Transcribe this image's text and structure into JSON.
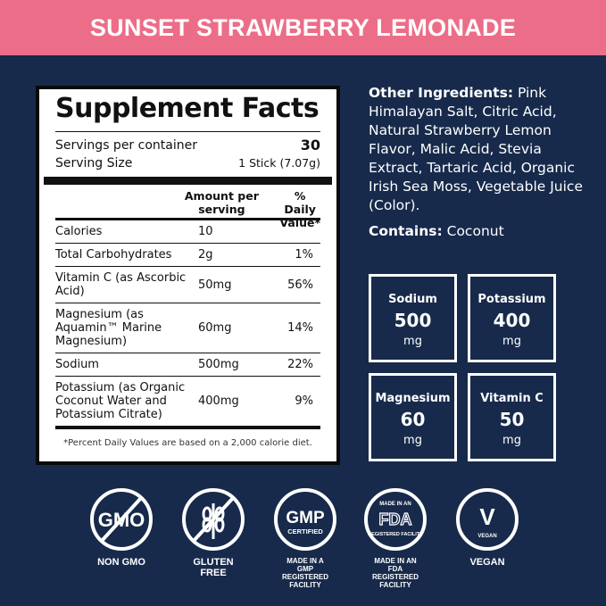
{
  "header": {
    "title": "SUNSET STRAWBERRY LEMONADE"
  },
  "colors": {
    "header_bg": "#ec6d88",
    "background": "#172a4b"
  },
  "facts": {
    "title": "Supplement Facts",
    "servings_label": "Servings per container",
    "servings_value": "30",
    "size_label": "Serving Size",
    "size_value": "1 Stick (7.07g)",
    "col_amount": "Amount per serving",
    "col_dv": "% Daily Value*",
    "rows": [
      {
        "name": "Calories",
        "amount": "10",
        "dv": ""
      },
      {
        "name": "Total Carbohydrates",
        "amount": "2g",
        "dv": "1%"
      },
      {
        "name": "Vitamin C (as Ascorbic Acid)",
        "amount": "50mg",
        "dv": "56%"
      },
      {
        "name": "Magnesium (as Aquamin™ Marine Magnesium)",
        "amount": "60mg",
        "dv": "14%"
      },
      {
        "name": "Sodium",
        "amount": "500mg",
        "dv": "22%"
      },
      {
        "name": "Potassium (as Organic Coconut Water and Potassium Citrate)",
        "amount": "400mg",
        "dv": "9%"
      }
    ],
    "footnote": "*Percent Daily Values are based on a 2,000 calorie diet."
  },
  "ingredients": {
    "label": "Other Ingredients:",
    "text": " Pink Himalayan Salt, Citric Acid, Natural Strawberry Lemon Flavor, Malic Acid, Stevia Extract, Tartaric Acid, Organic Irish Sea Moss, Vegetable Juice (Color).",
    "contains_label": "Contains:",
    "contains_text": " Coconut"
  },
  "boxes": [
    {
      "name": "Sodium",
      "value": "500",
      "unit": "mg"
    },
    {
      "name": "Potassium",
      "value": "400",
      "unit": "mg"
    },
    {
      "name": "Magnesium",
      "value": "60",
      "unit": "mg"
    },
    {
      "name": "Vitamin C",
      "value": "50",
      "unit": "mg"
    }
  ],
  "badges": [
    {
      "icon": "no-gmo-icon",
      "mark": "GMO",
      "label": "NON GMO"
    },
    {
      "icon": "gluten-free-icon",
      "label": "GLUTEN FREE"
    },
    {
      "icon": "gmp-certified-icon",
      "mark": "GMP",
      "sub": "CERTIFIED",
      "label": "MADE IN A GMP REGISTERED FACILITY"
    },
    {
      "icon": "fda-registered-icon",
      "top": "MADE IN AN",
      "mark": "FDA",
      "sub": "REGISTERED FACILITY",
      "label": "MADE IN AN FDA REGISTERED FACILITY"
    },
    {
      "icon": "vegan-icon",
      "mark": "V",
      "sub": "VEGAN",
      "label": "VEGAN"
    }
  ]
}
